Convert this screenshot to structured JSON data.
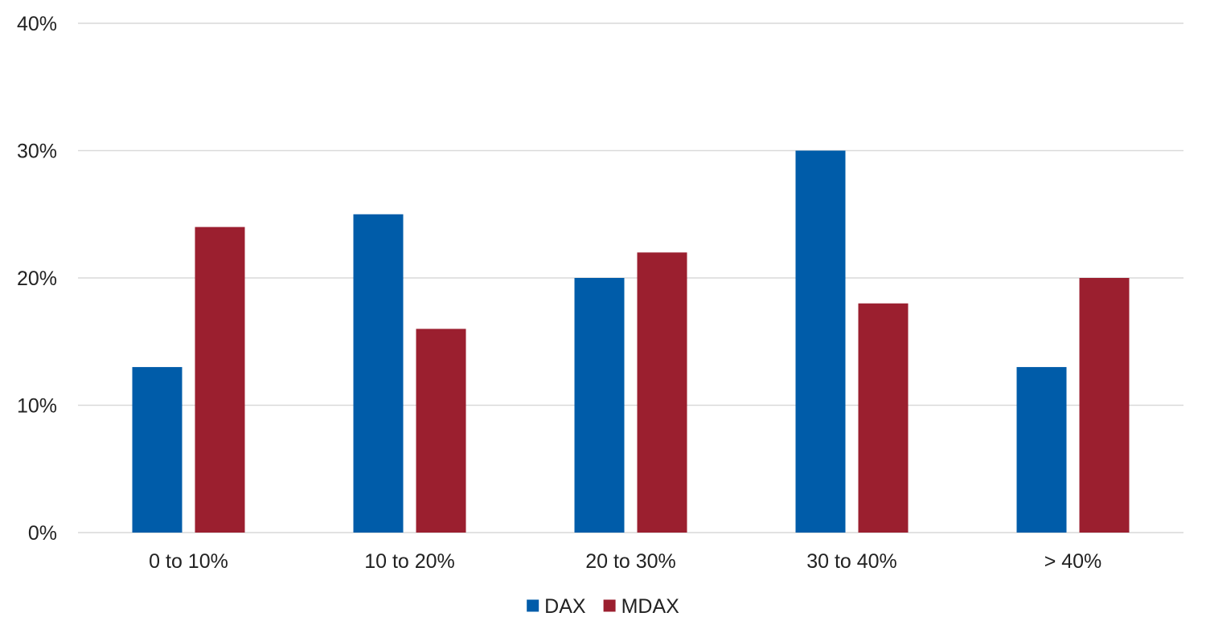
{
  "chart_data": {
    "type": "bar",
    "title": "",
    "xlabel": "",
    "ylabel": "",
    "categories": [
      "0 to 10%",
      "10 to 20%",
      "20 to 30%",
      "30 to 40%",
      "> 40%"
    ],
    "series": [
      {
        "name": "DAX",
        "color": "#005ca9",
        "values": [
          13,
          25,
          20,
          30,
          13
        ]
      },
      {
        "name": "MDAX",
        "color": "#9b1f2f",
        "values": [
          24,
          16,
          22,
          18,
          20
        ]
      }
    ],
    "ylim": [
      0,
      40
    ],
    "yticks": [
      0,
      10,
      20,
      30,
      40
    ],
    "ytick_labels": [
      "0%",
      "10%",
      "20%",
      "30%",
      "40%"
    ],
    "grid": true,
    "legend_position": "bottom"
  }
}
